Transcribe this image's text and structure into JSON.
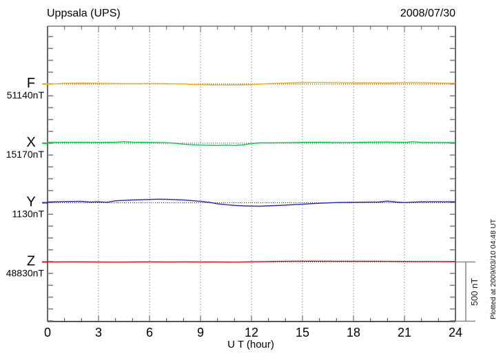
{
  "header": {
    "title": "Uppsala (UPS)",
    "date": "2008/07/30"
  },
  "xaxis": {
    "label": "U T (hour)",
    "ticks": [
      0,
      3,
      6,
      9,
      12,
      15,
      18,
      21,
      24
    ],
    "min": 0,
    "max": 24,
    "minor_tick_every_hours": 1,
    "gridline_hours": [
      3,
      6,
      9,
      12,
      15,
      18,
      21
    ]
  },
  "scale_bar": {
    "label": "500 nT",
    "nT": 500
  },
  "footnote": "Plotted at 2009/03/10 04:48 UT",
  "chart_data": {
    "type": "line",
    "title": "Uppsala (UPS)",
    "subtitle": "2008/07/30",
    "xlabel": "U T (hour)",
    "x_range": [
      0,
      24
    ],
    "grid": "dotted vertical every 3 h; dotted horizontal baseline per component",
    "legend_position": "left margin, one label per trace",
    "scale": {
      "label": "500 nT",
      "nT_per_division": 500
    },
    "series": [
      {
        "name": "F",
        "base_label": "51140nT",
        "base_nT": 51140,
        "color": "#FFAA00",
        "x": [
          0,
          0.5,
          1,
          2,
          3,
          4,
          5,
          6,
          7,
          8,
          9,
          10,
          11,
          12,
          12.5,
          13,
          14,
          15,
          16,
          17,
          18,
          19,
          20,
          21,
          22,
          23,
          24
        ],
        "offset_nT": [
          0,
          2,
          6,
          8,
          6,
          4,
          3,
          4,
          3,
          0,
          -5,
          -8,
          -8,
          -6,
          -2,
          3,
          8,
          13,
          14,
          12,
          10,
          10,
          9,
          12,
          12,
          8,
          5
        ]
      },
      {
        "name": "X",
        "base_label": "15170nT",
        "base_nT": 15170,
        "color": "#00CC44",
        "x": [
          0,
          1,
          2,
          2.5,
          3,
          4,
          4.5,
          5,
          6,
          7,
          7.5,
          8,
          9,
          10,
          10.5,
          11,
          11.5,
          12,
          12.5,
          13,
          14,
          15,
          16,
          17,
          18,
          19,
          20,
          21,
          21.5,
          22,
          23,
          24
        ],
        "offset_nT": [
          6,
          7,
          8,
          7,
          6,
          8,
          13,
          8,
          7,
          4,
          0,
          -8,
          -16,
          -19,
          -16,
          -20,
          -14,
          -3,
          3,
          3,
          4,
          7,
          8,
          5,
          6,
          9,
          10,
          7,
          13,
          7,
          5,
          6
        ]
      },
      {
        "name": "Y",
        "base_label": "1130nT",
        "base_nT": 1130,
        "color": "#2222CC",
        "x": [
          0,
          1,
          2,
          2.5,
          3,
          3.5,
          4,
          5,
          6,
          6.5,
          7,
          8,
          9,
          9.5,
          10,
          10.5,
          11,
          11.5,
          12,
          12.5,
          13,
          14,
          15,
          16,
          17,
          18,
          19,
          19.5,
          20,
          20.5,
          21,
          22,
          23,
          24
        ],
        "offset_nT": [
          6,
          10,
          12,
          6,
          8,
          4,
          16,
          24,
          28,
          30,
          29,
          24,
          12,
          4,
          -8,
          -16,
          -22,
          -26,
          -28,
          -29,
          -26,
          -20,
          -12,
          -4,
          2,
          4,
          5,
          6,
          14,
          6,
          2,
          8,
          8,
          8
        ]
      },
      {
        "name": "Z",
        "base_label": "48830nT",
        "base_nT": 48830,
        "color": "#DD1111",
        "x": [
          0,
          1,
          2,
          3,
          4,
          5,
          6,
          7,
          8,
          9,
          10,
          11,
          12,
          13,
          14,
          15,
          16,
          17,
          18,
          19,
          20,
          21,
          22,
          23,
          24
        ],
        "offset_nT": [
          0,
          1,
          1,
          0,
          -1,
          0,
          1,
          0,
          1,
          0,
          0,
          -1,
          2,
          4,
          6,
          7,
          7,
          6,
          6,
          6,
          5,
          4,
          4,
          4,
          3
        ]
      }
    ]
  }
}
